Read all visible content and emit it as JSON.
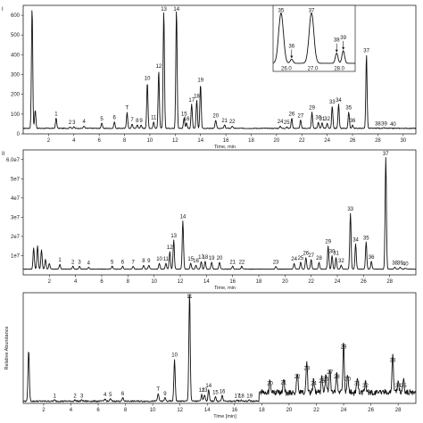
{
  "chart_data": [
    {
      "type": "line",
      "panel_label": "I",
      "xlabel": "Time, min",
      "xlim": [
        0,
        31
      ],
      "x_ticks": [
        2,
        4,
        6,
        8,
        10,
        12,
        14,
        16,
        18,
        20,
        22,
        24,
        26,
        28,
        30
      ],
      "ylim": [
        0,
        650
      ],
      "y_ticks": [
        0,
        100,
        200,
        300,
        400,
        500,
        600
      ],
      "baseline": 28,
      "peaks": [
        {
          "label": "",
          "x": 0.7,
          "y": 640
        },
        {
          "label": "",
          "x": 0.95,
          "y": 120
        },
        {
          "label": "1",
          "x": 2.6,
          "y": 80
        },
        {
          "label": "2",
          "x": 3.7,
          "y": 35
        },
        {
          "label": "3",
          "x": 4.0,
          "y": 35
        },
        {
          "label": "4",
          "x": 4.8,
          "y": 40
        },
        {
          "label": "5",
          "x": 6.2,
          "y": 55
        },
        {
          "label": "6",
          "x": 7.2,
          "y": 60
        },
        {
          "label": "T",
          "x": 8.2,
          "y": 110
        },
        {
          "label": "7",
          "x": 8.6,
          "y": 50
        },
        {
          "label": "8",
          "x": 9.0,
          "y": 45
        },
        {
          "label": "9",
          "x": 9.3,
          "y": 45
        },
        {
          "label": "10",
          "x": 9.8,
          "y": 260
        },
        {
          "label": "11",
          "x": 10.3,
          "y": 60
        },
        {
          "label": "12",
          "x": 10.7,
          "y": 320
        },
        {
          "label": "13",
          "x": 11.1,
          "y": 620
        },
        {
          "label": "14",
          "x": 12.1,
          "y": 630
        },
        {
          "label": "15",
          "x": 12.7,
          "y": 80
        },
        {
          "label": "16",
          "x": 12.9,
          "y": 55
        },
        {
          "label": "17",
          "x": 13.3,
          "y": 150
        },
        {
          "label": "18",
          "x": 13.7,
          "y": 170
        },
        {
          "label": "19",
          "x": 14.0,
          "y": 250
        },
        {
          "label": "20",
          "x": 15.2,
          "y": 70
        },
        {
          "label": "21",
          "x": 15.9,
          "y": 45
        },
        {
          "label": "22",
          "x": 16.5,
          "y": 40
        },
        {
          "label": "24",
          "x": 20.3,
          "y": 40
        },
        {
          "label": "25",
          "x": 20.8,
          "y": 35
        },
        {
          "label": "26",
          "x": 21.2,
          "y": 80
        },
        {
          "label": "27",
          "x": 21.9,
          "y": 70
        },
        {
          "label": "29",
          "x": 22.8,
          "y": 110
        },
        {
          "label": "30",
          "x": 23.3,
          "y": 60
        },
        {
          "label": "31",
          "x": 23.6,
          "y": 55
        },
        {
          "label": "32",
          "x": 24.0,
          "y": 55
        },
        {
          "label": "33",
          "x": 24.4,
          "y": 140
        },
        {
          "label": "34",
          "x": 24.9,
          "y": 150
        },
        {
          "label": "35",
          "x": 25.7,
          "y": 110
        },
        {
          "label": "36",
          "x": 26.0,
          "y": 45
        },
        {
          "label": "37",
          "x": 27.1,
          "y": 400
        },
        {
          "label": "38",
          "x": 28.0,
          "y": 30
        },
        {
          "label": "39",
          "x": 28.5,
          "y": 30
        },
        {
          "label": "40",
          "x": 29.2,
          "y": 28
        }
      ],
      "inset": {
        "x_ticks": [
          26.0,
          27.0,
          28.0
        ],
        "xlim": [
          25.5,
          28.6
        ],
        "peaks": [
          {
            "label": "35",
            "x": 25.8,
            "y": 100,
            "arrow": false
          },
          {
            "label": "36",
            "x": 26.2,
            "y": 8,
            "arrow": true
          },
          {
            "label": "37",
            "x": 26.95,
            "y": 100,
            "arrow": false
          },
          {
            "label": "38",
            "x": 27.9,
            "y": 20,
            "arrow": true
          },
          {
            "label": "39",
            "x": 28.15,
            "y": 25,
            "arrow": true
          }
        ]
      }
    },
    {
      "type": "line",
      "panel_label": "II",
      "xlabel": "Time, min",
      "xlim": [
        0,
        30
      ],
      "x_ticks": [
        2,
        4,
        6,
        8,
        10,
        12,
        14,
        16,
        18,
        20,
        22,
        24,
        26,
        28
      ],
      "ylim": [
        0,
        65000000.0
      ],
      "y_tick_labels": [
        "1e7",
        "2e7",
        "3e7",
        "4e7",
        "5e7",
        "6.0e7"
      ],
      "y_ticks": [
        10000000.0,
        20000000.0,
        30000000.0,
        40000000.0,
        50000000.0,
        60000000.0
      ],
      "baseline": 3000000.0,
      "peaks": [
        {
          "label": "",
          "x": 0.8,
          "y": 14000000.0
        },
        {
          "label": "",
          "x": 1.1,
          "y": 15000000.0
        },
        {
          "label": "",
          "x": 1.4,
          "y": 13000000.0
        },
        {
          "label": "",
          "x": 1.7,
          "y": 8000000.0
        },
        {
          "label": "",
          "x": 2.0,
          "y": 6000000.0
        },
        {
          "label": "1",
          "x": 2.8,
          "y": 5500000.0
        },
        {
          "label": "2",
          "x": 3.8,
          "y": 4500000.0
        },
        {
          "label": "3",
          "x": 4.3,
          "y": 4500000.0
        },
        {
          "label": "4",
          "x": 5.0,
          "y": 4000000.0
        },
        {
          "label": "5",
          "x": 6.8,
          "y": 4500000.0
        },
        {
          "label": "6",
          "x": 7.6,
          "y": 4500000.0
        },
        {
          "label": "7",
          "x": 8.4,
          "y": 4500000.0
        },
        {
          "label": "8",
          "x": 9.2,
          "y": 5000000.0
        },
        {
          "label": "9",
          "x": 9.6,
          "y": 5000000.0
        },
        {
          "label": "10",
          "x": 10.4,
          "y": 6000000.0
        },
        {
          "label": "11",
          "x": 10.9,
          "y": 6000000.0
        },
        {
          "label": "12",
          "x": 11.2,
          "y": 12000000.0
        },
        {
          "label": "13",
          "x": 11.5,
          "y": 18000000.0
        },
        {
          "label": "14",
          "x": 12.2,
          "y": 28000000.0
        },
        {
          "label": "15",
          "x": 12.8,
          "y": 6000000.0
        },
        {
          "label": "16",
          "x": 13.2,
          "y": 5000000.0
        },
        {
          "label": "17",
          "x": 13.6,
          "y": 7000000.0
        },
        {
          "label": "18",
          "x": 13.9,
          "y": 7000000.0
        },
        {
          "label": "19",
          "x": 14.4,
          "y": 6500000.0
        },
        {
          "label": "20",
          "x": 15.0,
          "y": 6500000.0
        },
        {
          "label": "21",
          "x": 16.0,
          "y": 4500000.0
        },
        {
          "label": "22",
          "x": 16.7,
          "y": 4500000.0
        },
        {
          "label": "23",
          "x": 19.3,
          "y": 4500000.0
        },
        {
          "label": "24",
          "x": 20.7,
          "y": 6000000.0
        },
        {
          "label": "25",
          "x": 21.2,
          "y": 6500000.0
        },
        {
          "label": "26",
          "x": 21.6,
          "y": 9000000.0
        },
        {
          "label": "27",
          "x": 22.0,
          "y": 8000000.0
        },
        {
          "label": "28",
          "x": 22.6,
          "y": 6500000.0
        },
        {
          "label": "29",
          "x": 23.3,
          "y": 15000000.0
        },
        {
          "label": "30",
          "x": 23.6,
          "y": 10000000.0
        },
        {
          "label": "31",
          "x": 23.9,
          "y": 9000000.0
        },
        {
          "label": "32",
          "x": 24.3,
          "y": 5000000.0
        },
        {
          "label": "33",
          "x": 25.0,
          "y": 32000000.0
        },
        {
          "label": "34",
          "x": 25.4,
          "y": 16000000.0
        },
        {
          "label": "35",
          "x": 26.2,
          "y": 17000000.0
        },
        {
          "label": "36",
          "x": 26.6,
          "y": 7000000.0
        },
        {
          "label": "37",
          "x": 27.7,
          "y": 61000000.0
        },
        {
          "label": "38",
          "x": 28.4,
          "y": 4000000.0
        },
        {
          "label": "39",
          "x": 28.8,
          "y": 4000000.0
        },
        {
          "label": "40",
          "x": 29.2,
          "y": 3500000.0
        }
      ]
    },
    {
      "type": "line",
      "panel_label": "",
      "xlabel": "Time [min]",
      "ylabel": "Relative Abundance",
      "xlim": [
        0.5,
        29.3
      ],
      "x_ticks": [
        2,
        4,
        6,
        8,
        10,
        12,
        14,
        16,
        18,
        20,
        22,
        24,
        26,
        28
      ],
      "ylim": [
        0,
        100
      ],
      "baseline": 2,
      "elevated_region": [
        17.8,
        29.3
      ],
      "elevated_level": 10,
      "peaks": [
        {
          "label": "",
          "x": 0.9,
          "y": 48
        },
        {
          "label": "1",
          "x": 2.8,
          "y": 3
        },
        {
          "label": "2",
          "x": 4.3,
          "y": 3
        },
        {
          "label": "3",
          "x": 4.8,
          "y": 3
        },
        {
          "label": "4",
          "x": 6.5,
          "y": 4
        },
        {
          "label": "5",
          "x": 6.9,
          "y": 4
        },
        {
          "label": "6",
          "x": 7.8,
          "y": 5
        },
        {
          "label": "T",
          "x": 10.4,
          "y": 9
        },
        {
          "label": "9",
          "x": 10.9,
          "y": 5
        },
        {
          "label": "10",
          "x": 11.6,
          "y": 40
        },
        {
          "label": "11",
          "x": 12.7,
          "y": 100
        },
        {
          "label": "12",
          "x": 13.6,
          "y": 8
        },
        {
          "label": "13",
          "x": 13.8,
          "y": 8
        },
        {
          "label": "14",
          "x": 14.1,
          "y": 12
        },
        {
          "label": "15",
          "x": 14.6,
          "y": 6
        },
        {
          "label": "16",
          "x": 15.1,
          "y": 7
        },
        {
          "label": "17",
          "x": 16.2,
          "y": 3
        },
        {
          "label": "18",
          "x": 16.5,
          "y": 3
        },
        {
          "label": "19",
          "x": 17.1,
          "y": 3
        },
        {
          "label": "20",
          "x": 18.6,
          "y": 14
        },
        {
          "label": "21",
          "x": 19.6,
          "y": 15
        },
        {
          "label": "22",
          "x": 20.6,
          "y": 20
        },
        {
          "label": "23",
          "x": 21.3,
          "y": 28
        },
        {
          "label": "24",
          "x": 21.8,
          "y": 14
        },
        {
          "label": "25",
          "x": 22.4,
          "y": 16
        },
        {
          "label": "26",
          "x": 22.7,
          "y": 18
        },
        {
          "label": "27",
          "x": 23.0,
          "y": 24
        },
        {
          "label": "28",
          "x": 23.5,
          "y": 20
        },
        {
          "label": "29",
          "x": 24.0,
          "y": 47
        },
        {
          "label": "30",
          "x": 24.3,
          "y": 18
        },
        {
          "label": "31",
          "x": 25.0,
          "y": 14
        },
        {
          "label": "32",
          "x": 25.6,
          "y": 12
        },
        {
          "label": "33",
          "x": 27.6,
          "y": 35
        },
        {
          "label": "34",
          "x": 28.0,
          "y": 12
        },
        {
          "label": "35",
          "x": 28.4,
          "y": 12
        }
      ]
    }
  ]
}
